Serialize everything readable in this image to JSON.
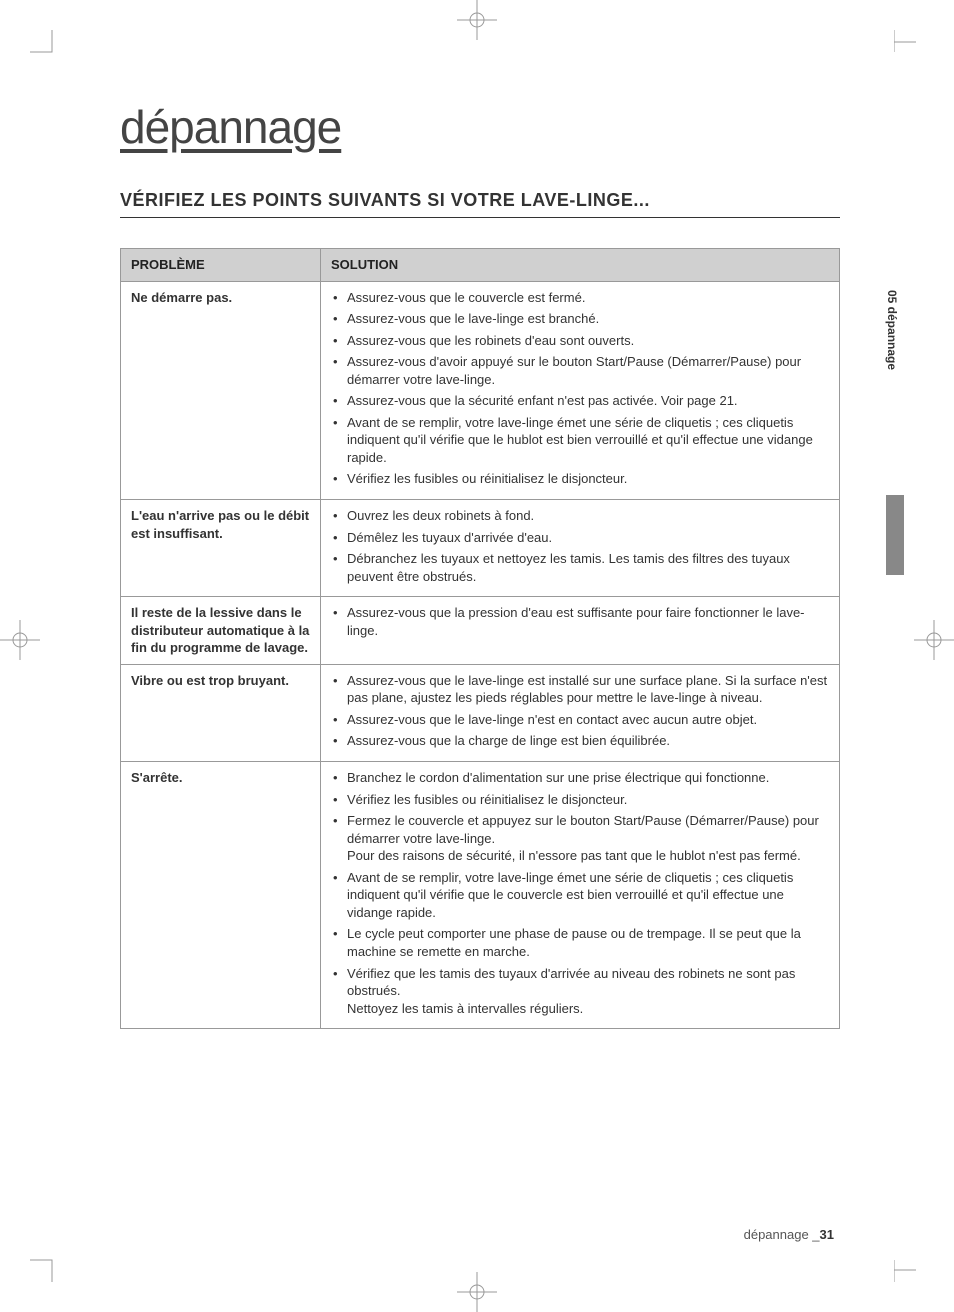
{
  "chapter_title": "dépannage",
  "section_title": "VÉRIFIEZ LES POINTS SUIVANTS SI VOTRE LAVE-LINGE...",
  "side_tab": "05 dépannage",
  "footer": {
    "label": "dépannage _",
    "page": "31"
  },
  "colors": {
    "header_bg": "#d0d0d0",
    "border": "#999999",
    "text": "#333333",
    "sidebar_dark": "#888888"
  },
  "table": {
    "headers": {
      "problem": "PROBLÈME",
      "solution": "SOLUTION"
    },
    "rows": [
      {
        "problem": "Ne démarre pas.",
        "solutions": [
          "Assurez-vous que le couvercle est fermé.",
          "Assurez-vous que le lave-linge est branché.",
          "Assurez-vous que les robinets d'eau sont ouverts.",
          "Assurez-vous d'avoir appuyé sur le bouton Start/Pause (Démarrer/Pause) pour démarrer votre lave-linge.",
          "Assurez-vous que la sécurité enfant n'est pas activée. Voir page 21.",
          "Avant de se remplir, votre lave-linge émet une série de cliquetis ; ces cliquetis indiquent qu'il vérifie que le hublot est bien verrouillé et qu'il effectue une vidange rapide.",
          "Vérifiez les fusibles ou réinitialisez le disjoncteur."
        ]
      },
      {
        "problem": "L'eau n'arrive pas ou le débit est insuffisant.",
        "solutions": [
          "Ouvrez les deux robinets à fond.",
          "Démêlez les tuyaux d'arrivée d'eau.",
          "Débranchez les tuyaux et nettoyez les tamis. Les tamis des filtres des tuyaux peuvent être obstrués."
        ]
      },
      {
        "problem": "Il reste de la lessive dans le distributeur automatique à la fin du programme de lavage.",
        "solutions": [
          "Assurez-vous que la pression d'eau est suffisante pour faire fonctionner le lave-linge."
        ]
      },
      {
        "problem": "Vibre ou est trop bruyant.",
        "solutions": [
          "Assurez-vous que le lave-linge est installé sur une surface plane. Si la surface n'est pas plane, ajustez les pieds réglables pour mettre le lave-linge à niveau.",
          "Assurez-vous que le lave-linge n'est en contact avec aucun autre objet.",
          "Assurez-vous que la charge de linge est bien équilibrée."
        ]
      },
      {
        "problem": "S'arrête.",
        "solutions": [
          "Branchez le cordon d'alimentation sur une prise électrique qui fonctionne.",
          "Vérifiez les fusibles ou réinitialisez le disjoncteur.",
          "Fermez le couvercle et appuyez sur le bouton Start/Pause (Démarrer/Pause) pour démarrer votre lave-linge.\nPour des raisons de sécurité, il n'essore pas tant que le hublot n'est pas fermé.",
          "Avant de se remplir, votre lave-linge émet une série de cliquetis ; ces cliquetis indiquent qu'il vérifie que le couvercle est bien verrouillé et qu'il effectue une vidange rapide.",
          "Le cycle peut comporter une phase de pause ou de trempage. Il se peut que la machine se remette en marche.",
          "Vérifiez que les tamis des tuyaux d'arrivée au niveau des robinets ne sont pas obstrués.\nNettoyez les tamis à intervalles réguliers."
        ]
      }
    ]
  }
}
